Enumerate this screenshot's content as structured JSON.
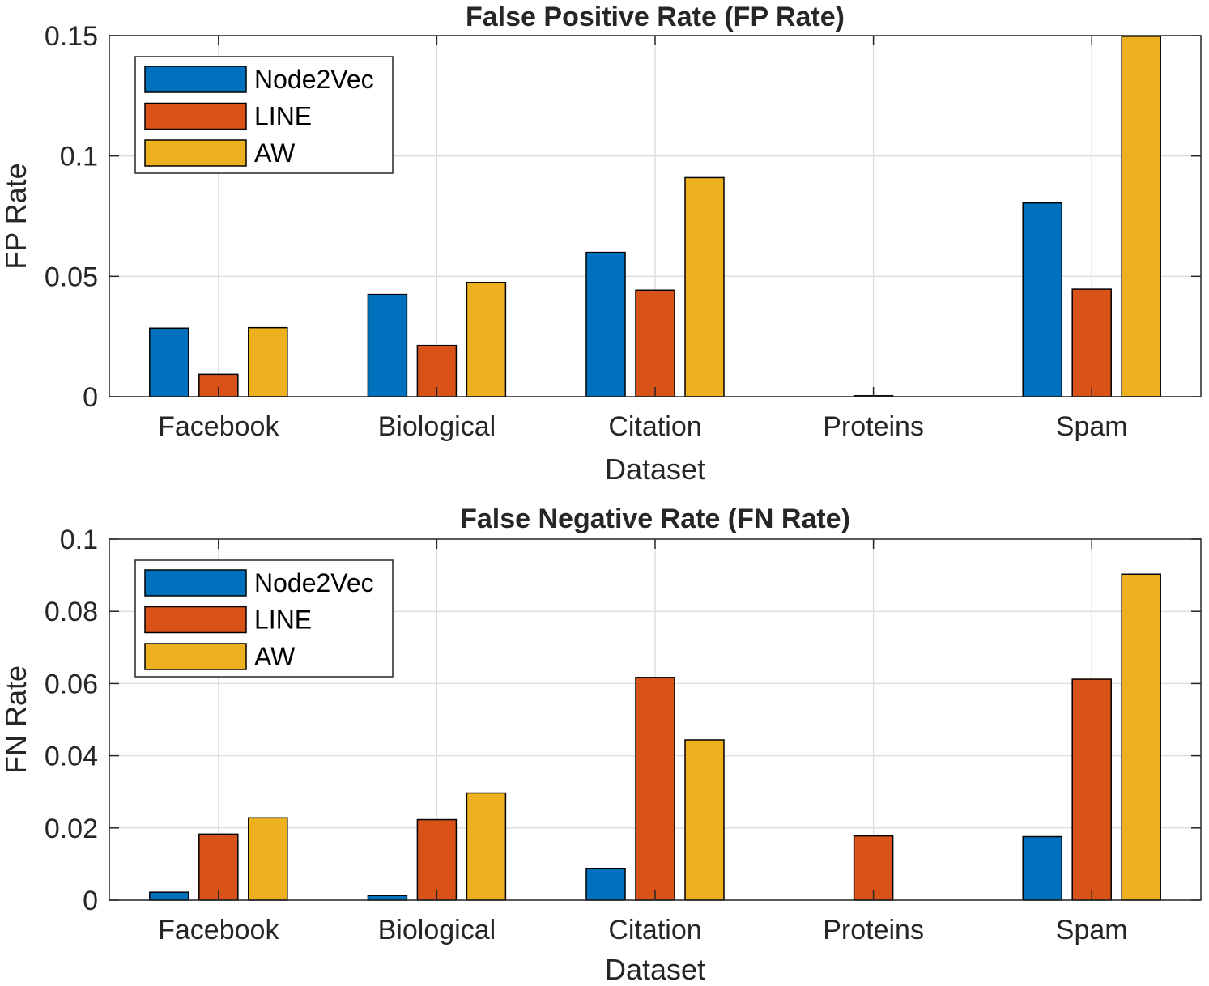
{
  "colors": {
    "Node2Vec": "#0072BD",
    "LINE": "#D95319",
    "AW": "#EDB120",
    "grid": "#dcdcdc",
    "axis": "#262626"
  },
  "chart_data": [
    {
      "type": "bar",
      "title": "False Positive Rate (FP Rate)",
      "xlabel": "Dataset",
      "ylabel": "FP Rate",
      "categories": [
        "Facebook",
        "Biological",
        "Citation",
        "Proteins",
        "Spam"
      ],
      "ylim": [
        0,
        0.15
      ],
      "yticks": [
        0,
        0.05,
        0.1,
        0.15
      ],
      "ytick_labels": [
        "0",
        "0.05",
        "0.1",
        "0.15"
      ],
      "grid": true,
      "legend_position": "top-left",
      "series": [
        {
          "name": "Node2Vec",
          "values": [
            0.0285,
            0.0425,
            0.06,
            0.0,
            0.0805
          ]
        },
        {
          "name": "LINE",
          "values": [
            0.0093,
            0.0213,
            0.0443,
            0.0004,
            0.0447
          ]
        },
        {
          "name": "AW",
          "values": [
            0.0287,
            0.0475,
            0.091,
            0.0,
            0.1497
          ]
        }
      ]
    },
    {
      "type": "bar",
      "title": "False Negative Rate (FN Rate)",
      "xlabel": "Dataset",
      "ylabel": "FN Rate",
      "categories": [
        "Facebook",
        "Biological",
        "Citation",
        "Proteins",
        "Spam"
      ],
      "ylim": [
        0,
        0.1
      ],
      "yticks": [
        0,
        0.02,
        0.04,
        0.06,
        0.08,
        0.1
      ],
      "ytick_labels": [
        "0",
        "0.02",
        "0.04",
        "0.06",
        "0.08",
        "0.1"
      ],
      "grid": true,
      "legend_position": "top-left",
      "series": [
        {
          "name": "Node2Vec",
          "values": [
            0.0022,
            0.0013,
            0.0088,
            0.0,
            0.0176
          ]
        },
        {
          "name": "LINE",
          "values": [
            0.0183,
            0.0223,
            0.0617,
            0.0178,
            0.0612
          ]
        },
        {
          "name": "AW",
          "values": [
            0.0228,
            0.0297,
            0.0444,
            0.0,
            0.0903
          ]
        }
      ]
    }
  ]
}
